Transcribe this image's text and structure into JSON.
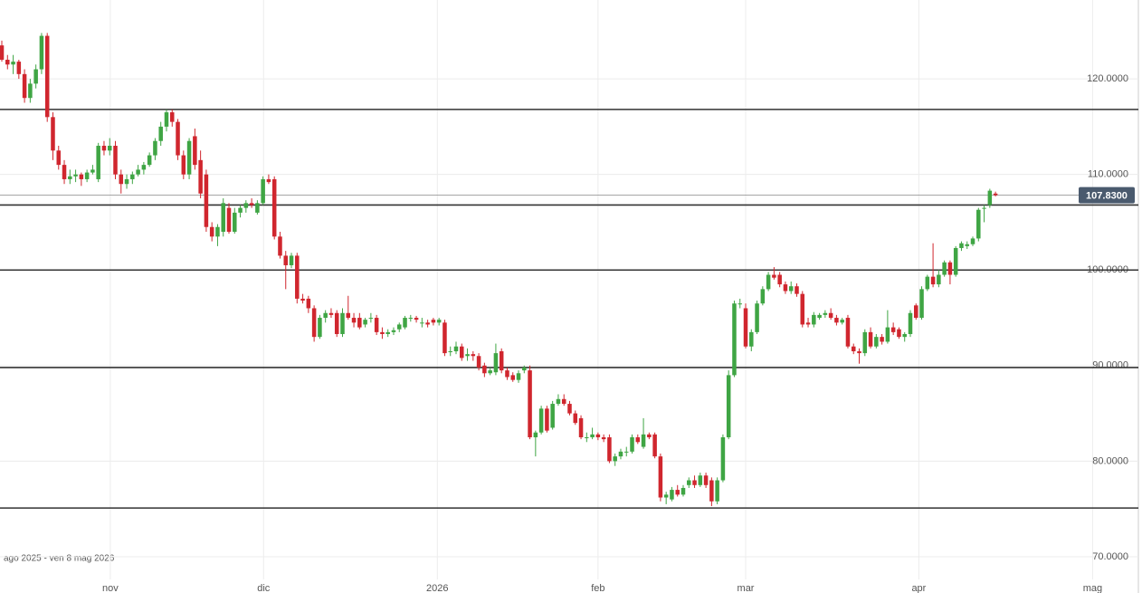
{
  "chart_data": {
    "type": "candlestick",
    "range_label": "ago 2025 - ven 8 mag 2026",
    "up_color": "#3fa544",
    "down_color": "#d0262e",
    "xlim": [
      -0.32,
      200.8
    ],
    "ylim": [
      67.63,
      128.25
    ],
    "xticks": [
      {
        "value": 19.1,
        "label": "nov"
      },
      {
        "value": 46.1,
        "label": "dic"
      },
      {
        "value": 76.7,
        "label": "2026"
      },
      {
        "value": 105.0,
        "label": "feb"
      },
      {
        "value": 131.0,
        "label": "mar"
      },
      {
        "value": 161.5,
        "label": "apr"
      },
      {
        "value": 192.1,
        "label": "mag"
      }
    ],
    "yticks": [
      {
        "value": 70,
        "label": "70.0000"
      },
      {
        "value": 80,
        "label": "80.0000"
      },
      {
        "value": 90,
        "label": "90.0000"
      },
      {
        "value": 100,
        "label": "100.0000"
      },
      {
        "value": 110,
        "label": "110.0000"
      },
      {
        "value": 120,
        "label": "120.0000"
      }
    ],
    "grid": true,
    "hlines": [
      116.8,
      106.8,
      100,
      89.8,
      75.1
    ],
    "last_price": 107.83,
    "last_price_label": "107.8300",
    "candles": [
      [
        123.5,
        124,
        121.8,
        122
      ],
      [
        122,
        122.5,
        121,
        121.5
      ],
      [
        121.5,
        122.5,
        120.5,
        121.8
      ],
      [
        121.8,
        122,
        120,
        120.5
      ],
      [
        120.5,
        121,
        117.5,
        118
      ],
      [
        118,
        120,
        117.5,
        119.5
      ],
      [
        119.5,
        121.5,
        119,
        121
      ],
      [
        121,
        124.8,
        120.5,
        124.5
      ],
      [
        124.5,
        124.8,
        115.5,
        116
      ],
      [
        116,
        116.5,
        111.5,
        112.5
      ],
      [
        112.5,
        113,
        110.5,
        111
      ],
      [
        111,
        111.5,
        109,
        109.5
      ],
      [
        109.5,
        110.5,
        109,
        109.8
      ],
      [
        109.8,
        110.5,
        109.2,
        110
      ],
      [
        110,
        110.2,
        108.8,
        109.5
      ],
      [
        109.5,
        110.5,
        109.2,
        110.2
      ],
      [
        110.2,
        111,
        110,
        110.5
      ],
      [
        109.5,
        113.3,
        109.2,
        113
      ],
      [
        113,
        113.5,
        112,
        112.5
      ],
      [
        112.5,
        113.8,
        112,
        113
      ],
      [
        113,
        113.5,
        109.5,
        110
      ],
      [
        110,
        110.5,
        108,
        109
      ],
      [
        109,
        110,
        108.5,
        109.5
      ],
      [
        109.5,
        110.3,
        109,
        110
      ],
      [
        110,
        111,
        109.8,
        110.5
      ],
      [
        110.5,
        111.3,
        110,
        111
      ],
      [
        111,
        112.3,
        110.8,
        112
      ],
      [
        112,
        113.8,
        111.5,
        113.5
      ],
      [
        113.5,
        115.5,
        113,
        115
      ],
      [
        115,
        116.8,
        114.5,
        116.5
      ],
      [
        116.5,
        116.8,
        115,
        115.5
      ],
      [
        115.5,
        115.8,
        111.5,
        112
      ],
      [
        112,
        112.5,
        109.5,
        110
      ],
      [
        110,
        113.8,
        109.5,
        113.5
      ],
      [
        114,
        114.8,
        110.5,
        111
      ],
      [
        111.5,
        112.5,
        107.5,
        108
      ],
      [
        110,
        110.5,
        104,
        104.5
      ],
      [
        104.5,
        105,
        103,
        103.5
      ],
      [
        103.5,
        104.8,
        102.5,
        104.5
      ],
      [
        104,
        107.5,
        103.5,
        107
      ],
      [
        106.5,
        107,
        103.8,
        104
      ],
      [
        104,
        106.5,
        103.8,
        106
      ],
      [
        106,
        106.8,
        105.5,
        106.5
      ],
      [
        106.5,
        107.3,
        106,
        107
      ],
      [
        107,
        107.5,
        106.5,
        106.8
      ],
      [
        106,
        107.3,
        105.8,
        107
      ],
      [
        107,
        109.8,
        106.8,
        109.5
      ],
      [
        109.5,
        110,
        109,
        109.2
      ],
      [
        109.5,
        109.8,
        103.2,
        103.5
      ],
      [
        103.5,
        104,
        101.2,
        101.5
      ],
      [
        101.5,
        102,
        98,
        100.5
      ],
      [
        100.5,
        101.8,
        100.2,
        101.5
      ],
      [
        101.5,
        101.8,
        96.5,
        97
      ],
      [
        97,
        97.5,
        96.5,
        96.8
      ],
      [
        97,
        97.3,
        95.5,
        96
      ],
      [
        96,
        96.3,
        92.5,
        93
      ],
      [
        93,
        95.3,
        92.8,
        95
      ],
      [
        95,
        95.8,
        94.5,
        95.5
      ],
      [
        95.5,
        96,
        95,
        95.3
      ],
      [
        95.5,
        95.8,
        93,
        93.3
      ],
      [
        93.3,
        96,
        93,
        95.5
      ],
      [
        95.5,
        97.3,
        94.8,
        95
      ],
      [
        95,
        95.5,
        94,
        94.5
      ],
      [
        95,
        95.5,
        93.8,
        94
      ],
      [
        94.3,
        95,
        94,
        94.8
      ],
      [
        95,
        95.5,
        94.5,
        95
      ],
      [
        95,
        95.3,
        93.2,
        93.5
      ],
      [
        93.5,
        94,
        92.8,
        93.3
      ],
      [
        93.3,
        93.8,
        93,
        93.5
      ],
      [
        93.5,
        94,
        93.2,
        93.7
      ],
      [
        93.8,
        94.5,
        93.5,
        94.3
      ],
      [
        94,
        95.2,
        93.8,
        95
      ],
      [
        95,
        95.3,
        94.6,
        95
      ],
      [
        95,
        95.2,
        94.5,
        94.8
      ],
      [
        94.5,
        95,
        94,
        94.5
      ],
      [
        94.5,
        94.8,
        94,
        94.3
      ],
      [
        94.8,
        95,
        94.2,
        94.5
      ],
      [
        94.5,
        95,
        94.2,
        94.8
      ],
      [
        94.5,
        94.8,
        91,
        91.3
      ],
      [
        91.5,
        92,
        91,
        91.5
      ],
      [
        91.5,
        92.5,
        91.2,
        92
      ],
      [
        92,
        92.3,
        90.5,
        90.8
      ],
      [
        91,
        91.8,
        90.5,
        91.2
      ],
      [
        91.2,
        91.5,
        90.5,
        91
      ],
      [
        91,
        91.3,
        89.5,
        89.8
      ],
      [
        90,
        90.3,
        88.8,
        89.2
      ],
      [
        89.2,
        89.8,
        89,
        89.5
      ],
      [
        89.3,
        92.3,
        89,
        91.3
      ],
      [
        91.5,
        91.8,
        89.2,
        89.5
      ],
      [
        89.5,
        89.8,
        88.5,
        88.8
      ],
      [
        89,
        89.3,
        88.3,
        88.5
      ],
      [
        88.5,
        89.5,
        88.2,
        89.2
      ],
      [
        89.5,
        90,
        89.2,
        89.8
      ],
      [
        89.5,
        90,
        82.3,
        82.5
      ],
      [
        82.5,
        83.2,
        80.5,
        83
      ],
      [
        83,
        85.8,
        82.8,
        85.5
      ],
      [
        85.5,
        85.8,
        83,
        83.2
      ],
      [
        83.5,
        86.3,
        83.3,
        86
      ],
      [
        86,
        87,
        85.8,
        86.5
      ],
      [
        86.5,
        87,
        85.8,
        86
      ],
      [
        86,
        86.3,
        84.8,
        85
      ],
      [
        85,
        85.3,
        83.8,
        84
      ],
      [
        84.5,
        84.8,
        82.3,
        82.5
      ],
      [
        82.5,
        83,
        82,
        82.5
      ],
      [
        82.5,
        83.5,
        82.3,
        82.8
      ],
      [
        82.8,
        83,
        82.2,
        82.5
      ],
      [
        82.5,
        82.8,
        82,
        82.3
      ],
      [
        82.5,
        82.8,
        79.8,
        80
      ],
      [
        80,
        80.8,
        79.5,
        80.5
      ],
      [
        80.5,
        81.3,
        80.2,
        81
      ],
      [
        81,
        81.5,
        80.5,
        81
      ],
      [
        81,
        82.8,
        80.8,
        82.5
      ],
      [
        82.5,
        82.8,
        81.8,
        82
      ],
      [
        81.5,
        84.5,
        81.3,
        82.8
      ],
      [
        82.8,
        83,
        82.3,
        82.5
      ],
      [
        82.8,
        83,
        80.3,
        80.5
      ],
      [
        80.5,
        80.8,
        75.8,
        76.2
      ],
      [
        76.2,
        76.8,
        75.5,
        76.5
      ],
      [
        76,
        77.3,
        75.8,
        77
      ],
      [
        77,
        77.5,
        76.3,
        76.5
      ],
      [
        76.5,
        77.5,
        76.3,
        77.2
      ],
      [
        77.5,
        78.3,
        77.2,
        78
      ],
      [
        78,
        78.5,
        77.2,
        77.5
      ],
      [
        77.5,
        78.8,
        77.3,
        78.5
      ],
      [
        78.5,
        78.8,
        77.2,
        77.5
      ],
      [
        78,
        78.3,
        75.3,
        75.8
      ],
      [
        75.8,
        78.3,
        75.5,
        78
      ],
      [
        78,
        82.8,
        77.8,
        82.5
      ],
      [
        82.5,
        89.5,
        82.3,
        89
      ],
      [
        89,
        96.8,
        88.8,
        96.5
      ],
      [
        96.5,
        97,
        96,
        96.5
      ],
      [
        96,
        96.5,
        91.8,
        92
      ],
      [
        92,
        93.8,
        91.5,
        93.5
      ],
      [
        93.5,
        96.8,
        93.3,
        96.5
      ],
      [
        96.5,
        98.3,
        96.3,
        98
      ],
      [
        98,
        99.8,
        97.8,
        99.5
      ],
      [
        99.5,
        100.3,
        99,
        99.2
      ],
      [
        99.5,
        99.8,
        98.2,
        98.5
      ],
      [
        98.5,
        98.8,
        97.5,
        97.8
      ],
      [
        97.8,
        98.8,
        97.5,
        98.3
      ],
      [
        98.3,
        98.6,
        97.2,
        97.5
      ],
      [
        97.5,
        97.8,
        94,
        94.3
      ],
      [
        94.5,
        95,
        94,
        94.3
      ],
      [
        94.3,
        95.6,
        94,
        95.3
      ],
      [
        95,
        95.5,
        94.8,
        95.3
      ],
      [
        95.3,
        95.8,
        95,
        95.5
      ],
      [
        95.5,
        96,
        94.8,
        95
      ],
      [
        95,
        95.3,
        94.2,
        94.5
      ],
      [
        94.5,
        95,
        94.3,
        94.8
      ],
      [
        95,
        95.3,
        91.8,
        92
      ],
      [
        92,
        92.3,
        91.2,
        91.5
      ],
      [
        91.5,
        91.8,
        90.2,
        91.3
      ],
      [
        91.3,
        93.8,
        91,
        93.5
      ],
      [
        93.5,
        94,
        91.8,
        92
      ],
      [
        92,
        93.3,
        91.8,
        93
      ],
      [
        93,
        93.3,
        92.2,
        92.5
      ],
      [
        92.5,
        95.8,
        92.3,
        94
      ],
      [
        94,
        94.5,
        93.2,
        93.5
      ],
      [
        93.8,
        94,
        92.8,
        93
      ],
      [
        93,
        93.5,
        92.5,
        93.3
      ],
      [
        93.3,
        95.8,
        93,
        95.5
      ],
      [
        96.3,
        96.5,
        94.8,
        95
      ],
      [
        95,
        98.3,
        94.8,
        98
      ],
      [
        98,
        99.5,
        97.8,
        99.3
      ],
      [
        99.3,
        102.8,
        98.2,
        98.5
      ],
      [
        98.5,
        100,
        98.2,
        99.5
      ],
      [
        99.5,
        101,
        99.3,
        100.8
      ],
      [
        100.8,
        101,
        98.5,
        99.5
      ],
      [
        99.5,
        102.5,
        99.3,
        102.3
      ],
      [
        102.3,
        103,
        102,
        102.8
      ],
      [
        102.5,
        103,
        102.2,
        102.7
      ],
      [
        102.7,
        103.5,
        102.5,
        103.3
      ],
      [
        103.3,
        106.5,
        103,
        106.3
      ],
      [
        106.5,
        106.8,
        105,
        106.5
      ],
      [
        106.8,
        108.5,
        106.5,
        108.3
      ],
      [
        108,
        108.2,
        107.7,
        107.83
      ]
    ]
  }
}
